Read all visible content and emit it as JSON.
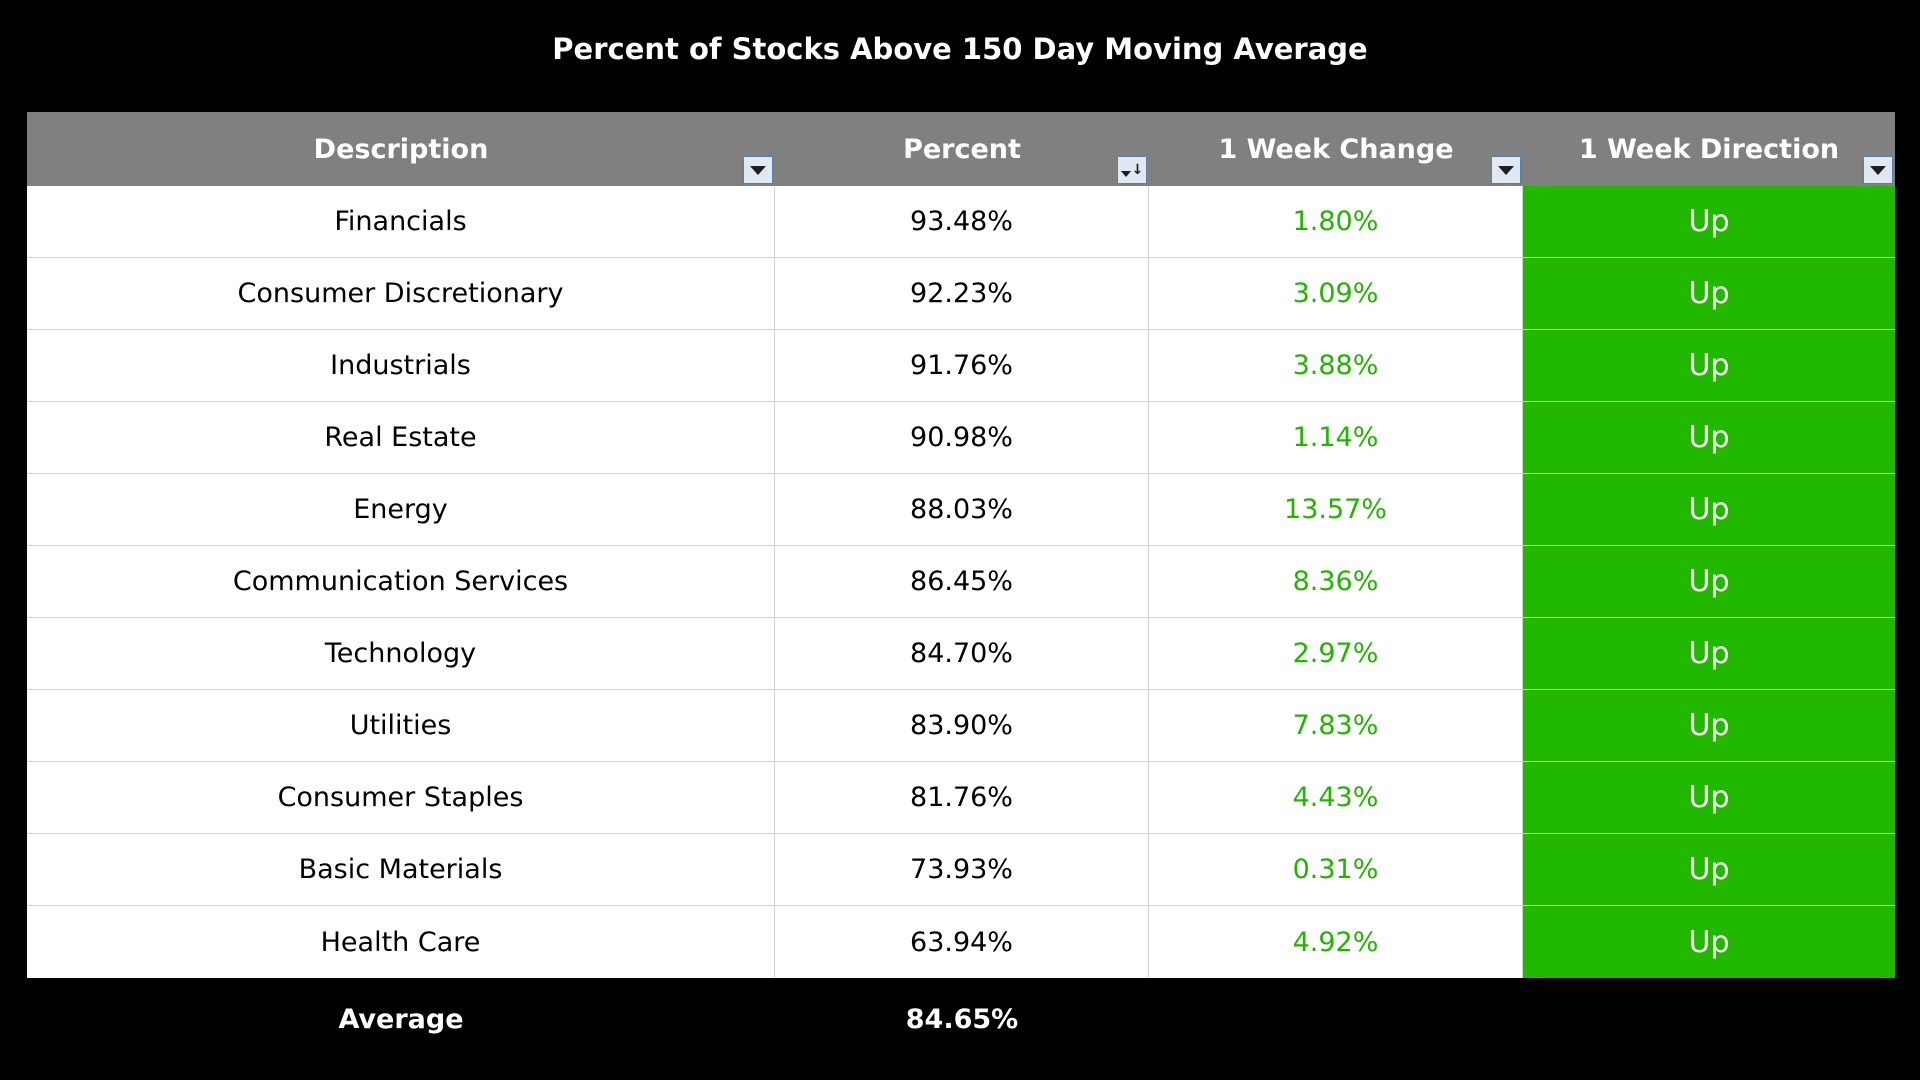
{
  "title": "Percent of Stocks Above 150 Day Moving Average",
  "colors": {
    "background": "#000000",
    "header_bg": "#808080",
    "change_text": "#22b500",
    "direction_bg": "#22b800"
  },
  "table": {
    "columns": [
      "Description",
      "Percent",
      "1 Week Change",
      "1 Week Direction"
    ],
    "sorted_column": "Percent",
    "rows": [
      {
        "description": "Financials",
        "percent": "93.48%",
        "change": "1.80%",
        "direction": "Up"
      },
      {
        "description": "Consumer Discretionary",
        "percent": "92.23%",
        "change": "3.09%",
        "direction": "Up"
      },
      {
        "description": "Industrials",
        "percent": "91.76%",
        "change": "3.88%",
        "direction": "Up"
      },
      {
        "description": "Real Estate",
        "percent": "90.98%",
        "change": "1.14%",
        "direction": "Up"
      },
      {
        "description": "Energy",
        "percent": "88.03%",
        "change": "13.57%",
        "direction": "Up"
      },
      {
        "description": "Communication Services",
        "percent": "86.45%",
        "change": "8.36%",
        "direction": "Up"
      },
      {
        "description": "Technology",
        "percent": "84.70%",
        "change": "2.97%",
        "direction": "Up"
      },
      {
        "description": "Utilities",
        "percent": "83.90%",
        "change": "7.83%",
        "direction": "Up"
      },
      {
        "description": "Consumer Staples",
        "percent": "81.76%",
        "change": "4.43%",
        "direction": "Up"
      },
      {
        "description": "Basic Materials",
        "percent": "73.93%",
        "change": "0.31%",
        "direction": "Up"
      },
      {
        "description": "Health Care",
        "percent": "63.94%",
        "change": "4.92%",
        "direction": "Up"
      }
    ],
    "footer": {
      "label": "Average",
      "percent": "84.65%"
    }
  }
}
